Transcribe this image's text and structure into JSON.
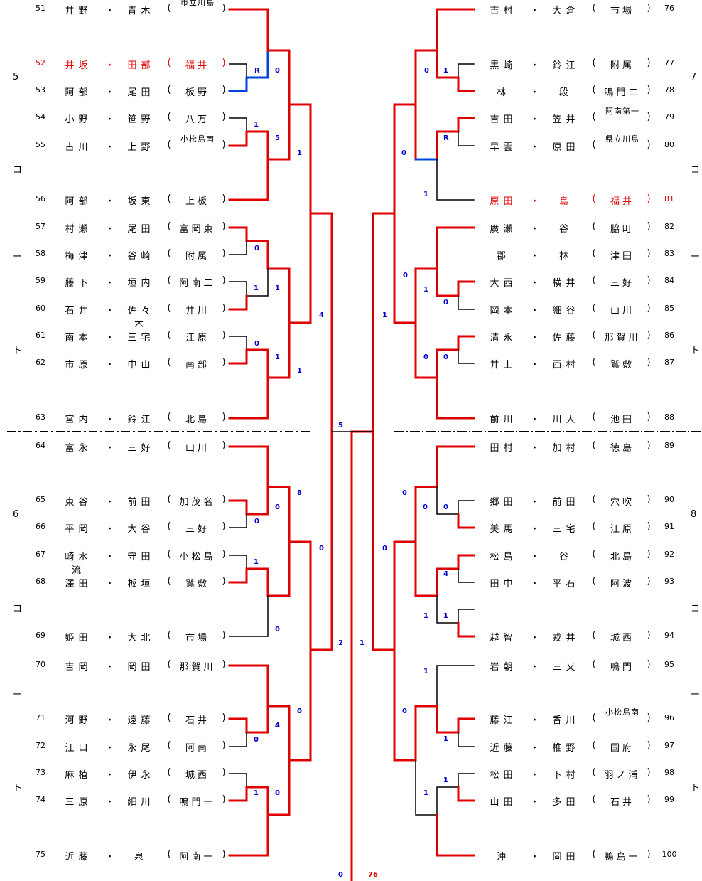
{
  "left": [
    {
      "no": "51",
      "a": "井野",
      "b": "青木",
      "team": "市立川島",
      "small": true
    },
    {
      "no": "52",
      "a": "井坂",
      "b": "田部",
      "team": "福井",
      "small": false,
      "struck": true
    },
    {
      "no": "53",
      "a": "阿部",
      "b": "尾田",
      "team": "板野",
      "small": false
    },
    {
      "no": "54",
      "a": "小野",
      "b": "笹野",
      "team": "八万",
      "small": false
    },
    {
      "no": "55",
      "a": "古川",
      "b": "上野",
      "team": "小松島南",
      "small": true
    },
    {
      "no": "56",
      "a": "阿部",
      "b": "坂東",
      "team": "上板",
      "small": false
    },
    {
      "no": "57",
      "a": "村瀬",
      "b": "尾田",
      "team": "富岡東",
      "small": false
    },
    {
      "no": "58",
      "a": "梅津",
      "b": "谷崎",
      "team": "附属",
      "small": false
    },
    {
      "no": "59",
      "a": "藤下",
      "b": "垣内",
      "team": "阿南二",
      "small": false
    },
    {
      "no": "60",
      "a": "石井",
      "b": "佐々木",
      "team": "井川",
      "small": false
    },
    {
      "no": "61",
      "a": "南本",
      "b": "三宅",
      "team": "江原",
      "small": false
    },
    {
      "no": "62",
      "a": "市原",
      "b": "中山",
      "team": "南部",
      "small": false
    },
    {
      "no": "63",
      "a": "宮内",
      "b": "鈴江",
      "team": "北島",
      "small": false
    },
    {
      "no": "64",
      "a": "富永",
      "b": "三好",
      "team": "山川",
      "small": false
    },
    {
      "no": "65",
      "a": "東谷",
      "b": "前田",
      "team": "加茂名",
      "small": false
    },
    {
      "no": "66",
      "a": "平岡",
      "b": "大谷",
      "team": "三好",
      "small": false
    },
    {
      "no": "67",
      "a": "崎水流",
      "b": "守田",
      "team": "小松島",
      "small": false
    },
    {
      "no": "68",
      "a": "澤田",
      "b": "板垣",
      "team": "鷲敷",
      "small": false
    },
    {
      "no": "69",
      "a": "姫田",
      "b": "大北",
      "team": "市場",
      "small": false
    },
    {
      "no": "70",
      "a": "吉岡",
      "b": "岡田",
      "team": "那賀川",
      "small": false
    },
    {
      "no": "71",
      "a": "河野",
      "b": "遠藤",
      "team": "石井",
      "small": false
    },
    {
      "no": "72",
      "a": "江口",
      "b": "永尾",
      "team": "阿南",
      "small": false
    },
    {
      "no": "73",
      "a": "麻植",
      "b": "伊永",
      "team": "城西",
      "small": false
    },
    {
      "no": "74",
      "a": "三原",
      "b": "細川",
      "team": "鳴門一",
      "small": false
    },
    {
      "no": "75",
      "a": "近藤",
      "b": "泉",
      "team": "阿南一",
      "small": false
    }
  ],
  "right": [
    {
      "no": "76",
      "a": "吉村",
      "b": "大倉",
      "team": "市場",
      "small": false
    },
    {
      "no": "77",
      "a": "黒崎",
      "b": "鈴江",
      "team": "附属",
      "small": false
    },
    {
      "no": "78",
      "a": "林",
      "b": "段",
      "team": "鳴門二",
      "small": false
    },
    {
      "no": "79",
      "a": "吉田",
      "b": "笠井",
      "team": "阿南第一",
      "small": true
    },
    {
      "no": "80",
      "a": "早雲",
      "b": "原田",
      "team": "県立川島",
      "small": true
    },
    {
      "no": "81",
      "a": "原田",
      "b": "島",
      "team": "福井",
      "small": false,
      "struck": true
    },
    {
      "no": "82",
      "a": "廣瀬",
      "b": "谷",
      "team": "脇町",
      "small": false
    },
    {
      "no": "83",
      "a": "郡",
      "b": "林",
      "team": "津田",
      "small": false
    },
    {
      "no": "84",
      "a": "大西",
      "b": "横井",
      "team": "三好",
      "small": false
    },
    {
      "no": "85",
      "a": "岡本",
      "b": "細谷",
      "team": "山川",
      "small": false
    },
    {
      "no": "86",
      "a": "清永",
      "b": "佐藤",
      "team": "那賀川",
      "small": false
    },
    {
      "no": "87",
      "a": "井上",
      "b": "西村",
      "team": "鷲敷",
      "small": false
    },
    {
      "no": "88",
      "a": "前川",
      "b": "川人",
      "team": "池田",
      "small": false
    },
    {
      "no": "89",
      "a": "田村",
      "b": "加村",
      "team": "徳島",
      "small": false
    },
    {
      "no": "90",
      "a": "郷田",
      "b": "前田",
      "team": "穴吹",
      "small": false
    },
    {
      "no": "91",
      "a": "美馬",
      "b": "三宅",
      "team": "江原",
      "small": false
    },
    {
      "no": "92",
      "a": "松島",
      "b": "谷",
      "team": "北島",
      "small": false
    },
    {
      "no": "93",
      "a": "田中",
      "b": "平石",
      "team": "阿波",
      "small": false
    },
    {
      "no": "94",
      "a": "越智",
      "b": "戎井",
      "team": "城西",
      "small": false
    },
    {
      "no": "95",
      "a": "岩朝",
      "b": "三又",
      "team": "鳴門",
      "small": false
    },
    {
      "no": "96",
      "a": "藤江",
      "b": "香川",
      "team": "小松島南",
      "small": true
    },
    {
      "no": "97",
      "a": "近藤",
      "b": "椎野",
      "team": "国府",
      "small": false
    },
    {
      "no": "98",
      "a": "松田",
      "b": "下村",
      "team": "羽ノ浦",
      "small": false
    },
    {
      "no": "99",
      "a": "山田",
      "b": "多田",
      "team": "石井",
      "small": false
    },
    {
      "no": "100",
      "a": "沖",
      "b": "岡田",
      "team": "鴨島一",
      "small": false
    }
  ],
  "court_labels": {
    "left_top": [
      "5",
      "コ",
      "ー",
      "ト"
    ],
    "left_bottom": [
      "6",
      "コ",
      "ー",
      "ト"
    ],
    "right_top": [
      "7",
      "コ",
      "ー",
      "ト"
    ],
    "right_bottom": [
      "8",
      "コ",
      "ー",
      "ト"
    ]
  },
  "punct": {
    "dot": "・",
    "open": "(",
    "close": ")"
  },
  "scores": [
    {
      "t": "R",
      "c": "blue"
    },
    {
      "t": "0",
      "c": "blue"
    },
    {
      "t": "1",
      "c": "blue"
    },
    {
      "t": "5",
      "c": "blue"
    },
    {
      "t": "1",
      "c": "blue"
    },
    {
      "t": "0",
      "c": "blue"
    },
    {
      "t": "1",
      "c": "blue"
    },
    {
      "t": "1",
      "c": "blue"
    },
    {
      "t": "4",
      "c": "blue"
    },
    {
      "t": "0",
      "c": "blue"
    },
    {
      "t": "1",
      "c": "blue"
    },
    {
      "t": "1",
      "c": "blue"
    },
    {
      "t": "5",
      "c": "blue"
    },
    {
      "t": "0",
      "c": "blue"
    },
    {
      "t": "8",
      "c": "blue"
    },
    {
      "t": "0",
      "c": "blue"
    },
    {
      "t": "0",
      "c": "blue"
    },
    {
      "t": "1",
      "c": "blue"
    },
    {
      "t": "0",
      "c": "blue"
    },
    {
      "t": "2",
      "c": "blue"
    },
    {
      "t": "0",
      "c": "blue"
    },
    {
      "t": "4",
      "c": "blue"
    },
    {
      "t": "0",
      "c": "blue"
    },
    {
      "t": "1",
      "c": "blue"
    },
    {
      "t": "0",
      "c": "blue"
    },
    {
      "t": "0",
      "c": "blue"
    },
    {
      "t": "1",
      "c": "blue"
    },
    {
      "t": "0",
      "c": "blue"
    },
    {
      "t": "R",
      "c": "blue"
    },
    {
      "t": "1",
      "c": "blue"
    },
    {
      "t": "0",
      "c": "blue"
    },
    {
      "t": "1",
      "c": "blue"
    },
    {
      "t": "0",
      "c": "blue"
    },
    {
      "t": "0",
      "c": "blue"
    },
    {
      "t": "0",
      "c": "blue"
    },
    {
      "t": "1",
      "c": "blue"
    },
    {
      "t": "0",
      "c": "blue"
    },
    {
      "t": "0",
      "c": "blue"
    },
    {
      "t": "0",
      "c": "blue"
    },
    {
      "t": "0",
      "c": "blue"
    },
    {
      "t": "4",
      "c": "blue"
    },
    {
      "t": "1",
      "c": "blue"
    },
    {
      "t": "1",
      "c": "blue"
    },
    {
      "t": "1",
      "c": "blue"
    },
    {
      "t": "1",
      "c": "blue"
    },
    {
      "t": "0",
      "c": "blue"
    },
    {
      "t": "1",
      "c": "blue"
    },
    {
      "t": "1",
      "c": "blue"
    },
    {
      "t": "1",
      "c": "blue"
    },
    {
      "t": "0",
      "c": "blue"
    },
    {
      "t": "76",
      "c": "red"
    }
  ]
}
